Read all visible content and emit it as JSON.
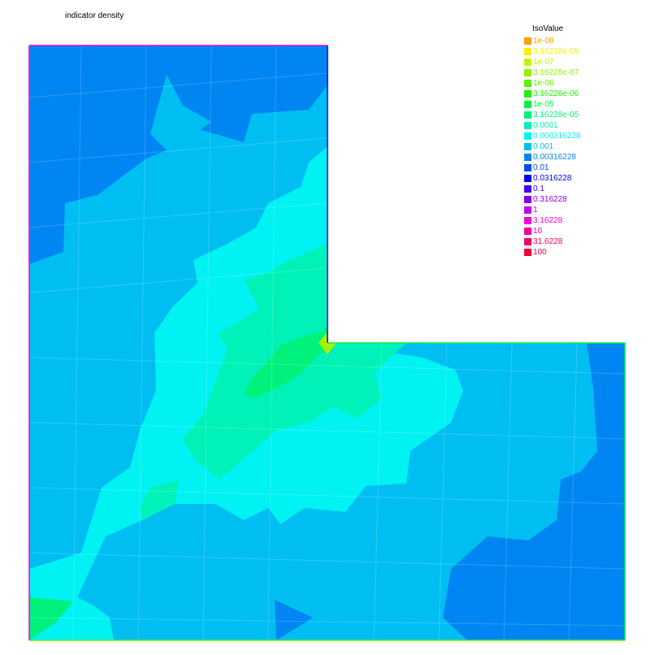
{
  "title": "indicator density",
  "legend": {
    "title": "IsoValue",
    "items": [
      {
        "label": "1e-08",
        "color": "#f5a400"
      },
      {
        "label": "3.16228e-08",
        "color": "#f2f200"
      },
      {
        "label": "1e-07",
        "color": "#c6f200"
      },
      {
        "label": "3.16228e-07",
        "color": "#94f200"
      },
      {
        "label": "1e-06",
        "color": "#5ef200"
      },
      {
        "label": "3.16228e-06",
        "color": "#22f200"
      },
      {
        "label": "1e-05",
        "color": "#00f244"
      },
      {
        "label": "3.16228e-05",
        "color": "#00f27c"
      },
      {
        "label": "0.0001",
        "color": "#00f2b8"
      },
      {
        "label": "0.000316228",
        "color": "#00f2f2"
      },
      {
        "label": "0.001",
        "color": "#00bef2"
      },
      {
        "label": "0.00316228",
        "color": "#0086f2"
      },
      {
        "label": "0.01",
        "color": "#004cf2"
      },
      {
        "label": "0.0316228",
        "color": "#0000f2"
      },
      {
        "label": "0.1",
        "color": "#4000f2"
      },
      {
        "label": "0.316228",
        "color": "#8200f2"
      },
      {
        "label": "1",
        "color": "#c400f2"
      },
      {
        "label": "3.16228",
        "color": "#f200d6"
      },
      {
        "label": "10",
        "color": "#f2009c"
      },
      {
        "label": "31.6228",
        "color": "#f20062"
      },
      {
        "label": "100",
        "color": "#f2003a"
      }
    ]
  }
}
